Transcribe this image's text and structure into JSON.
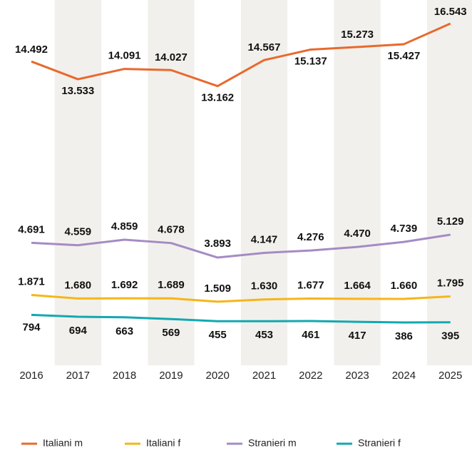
{
  "chart_data": {
    "type": "line",
    "categories": [
      "2016",
      "2017",
      "2018",
      "2019",
      "2020",
      "2021",
      "2022",
      "2023",
      "2024",
      "2025"
    ],
    "series": [
      {
        "name": "Italiani m",
        "color": "#e8692d",
        "values": [
          14492,
          13533,
          14091,
          14027,
          13162,
          14567,
          15137,
          15273,
          15427,
          16543
        ],
        "value_labels": [
          "14.492",
          "13.533",
          "14.091",
          "14.027",
          "13.162",
          "14.567",
          "15.137",
          "15.273",
          "15.427",
          "16.543"
        ]
      },
      {
        "name": "Italiani f",
        "color": "#f5b619",
        "values": [
          1871,
          1680,
          1692,
          1689,
          1509,
          1630,
          1677,
          1664,
          1660,
          1795
        ],
        "value_labels": [
          "1.871",
          "1.680",
          "1.692",
          "1.689",
          "1.509",
          "1.630",
          "1.677",
          "1.664",
          "1.660",
          "1.795"
        ]
      },
      {
        "name": "Stranieri m",
        "color": "#a58bc4",
        "values": [
          4691,
          4559,
          4859,
          4678,
          3893,
          4147,
          4276,
          4470,
          4739,
          5129
        ],
        "value_labels": [
          "4.691",
          "4.559",
          "4.859",
          "4.678",
          "3.893",
          "4.147",
          "4.276",
          "4.470",
          "4.739",
          "5.129"
        ]
      },
      {
        "name": "Stranieri f",
        "color": "#13a8b0",
        "values": [
          794,
          694,
          663,
          569,
          455,
          453,
          461,
          417,
          386,
          395
        ]
      }
    ]
  }
}
